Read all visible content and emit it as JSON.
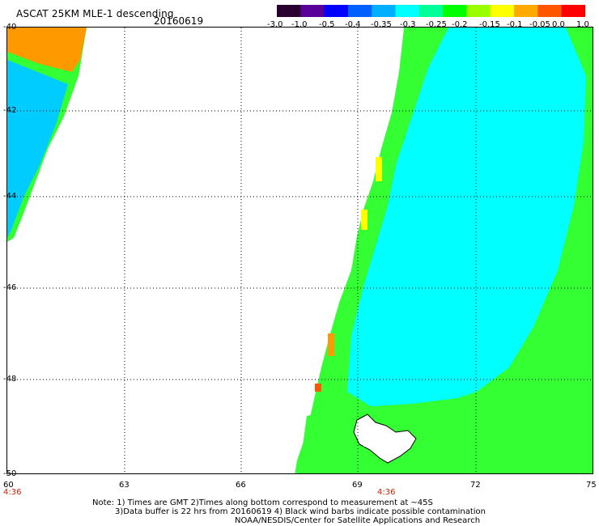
{
  "title": "ASCAT 25KM MLE-1 descending",
  "date": "20160619",
  "colorbar": {
    "labels": [
      "-3.0",
      "-1.0",
      "-0.5",
      "-0.4",
      "-0.35",
      "-0.3",
      "-0.25",
      "-0.2",
      "-0.15",
      "-0.1",
      "-0.05",
      "0.0",
      "1.0"
    ],
    "colors": [
      "#2a0030",
      "#5a009a",
      "#0000ff",
      "#0060ff",
      "#00b0ff",
      "#00ffff",
      "#00ff99",
      "#00ff00",
      "#99ff00",
      "#ffff00",
      "#ffaa00",
      "#ff5500",
      "#ff0000"
    ]
  },
  "axes": {
    "lat_labels": [
      "-40",
      "-42",
      "-44",
      "-46",
      "-48",
      "-50"
    ],
    "lon_labels": [
      "60",
      "63",
      "66",
      "69",
      "72",
      "75"
    ],
    "time_labels": [
      "4:36",
      "4:36"
    ]
  },
  "field": {
    "main_color": "#00ffff",
    "edge_color": "#33ff33",
    "hot_colors": [
      "#ffff00",
      "#ff9900",
      "#ff5500"
    ]
  },
  "notes": [
    "Note: 1) Times are GMT 2)Times along bottom correspond to measurement at ~45S",
    "3)Data buffer is 22 hrs from 20160619 4) Black wind barbs indicate possible contamination",
    "NOAA/NESDIS/Center for Satellite Applications and Research"
  ]
}
